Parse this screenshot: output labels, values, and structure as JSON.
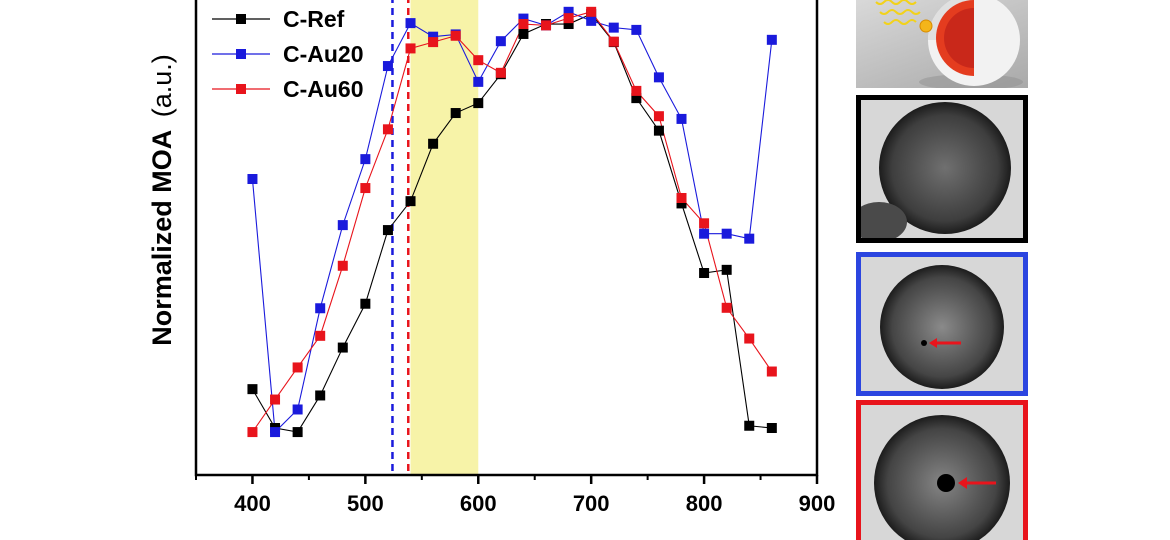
{
  "chart_data": {
    "type": "line",
    "title": "",
    "xlabel": "",
    "ylabel": "Normalized MOA",
    "ylabel_unit": "(a.u.)",
    "xlim": [
      350,
      900
    ],
    "ylim": [
      0,
      1.06
    ],
    "xticks": [
      400,
      500,
      600,
      700,
      800,
      900
    ],
    "grid": false,
    "legend_position": "top-left",
    "highlight_band": {
      "x_start": 540,
      "x_end": 600,
      "color": "#f7f3a8"
    },
    "vlines": [
      {
        "x": 524,
        "color": "#1a1adc",
        "style": "dashed"
      },
      {
        "x": 538,
        "color": "#e8141c",
        "style": "dashed"
      }
    ],
    "series": [
      {
        "name": "C-Ref",
        "color": "#000000",
        "x": [
          400,
          420,
          440,
          460,
          480,
          500,
          520,
          540,
          560,
          580,
          600,
          620,
          640,
          660,
          680,
          700,
          720,
          740,
          760,
          780,
          800,
          820,
          840,
          860
        ],
        "y": [
          0.19,
          0.104,
          0.095,
          0.176,
          0.282,
          0.379,
          0.542,
          0.606,
          0.733,
          0.801,
          0.823,
          0.887,
          0.976,
          0.998,
          0.998,
          1.02,
          0.958,
          0.834,
          0.762,
          0.601,
          0.447,
          0.454,
          0.109,
          0.104
        ]
      },
      {
        "name": "C-Au20",
        "color": "#1a1adc",
        "x": [
          400,
          420,
          440,
          460,
          480,
          500,
          520,
          540,
          560,
          580,
          600,
          620,
          640,
          660,
          680,
          700,
          720,
          740,
          760,
          780,
          800,
          820,
          840,
          860
        ],
        "y": [
          0.655,
          0.095,
          0.145,
          0.369,
          0.553,
          0.699,
          0.905,
          1.0,
          0.97,
          0.975,
          0.87,
          0.96,
          1.01,
          0.995,
          1.025,
          1.005,
          0.99,
          0.985,
          0.88,
          0.788,
          0.534,
          0.534,
          0.523,
          0.963
        ]
      },
      {
        "name": "C-Au60",
        "color": "#e8141c",
        "x": [
          400,
          420,
          440,
          460,
          480,
          500,
          520,
          540,
          560,
          580,
          600,
          620,
          640,
          660,
          680,
          700,
          720,
          740,
          760,
          780,
          800,
          820,
          840,
          860
        ],
        "y": [
          0.095,
          0.167,
          0.238,
          0.308,
          0.463,
          0.635,
          0.765,
          0.944,
          0.958,
          0.972,
          0.918,
          0.89,
          0.998,
          0.995,
          1.011,
          1.025,
          0.959,
          0.85,
          0.794,
          0.613,
          0.557,
          0.37,
          0.302,
          0.229
        ]
      }
    ]
  },
  "panels": [
    {
      "name": "sphere-schematic",
      "border_color": "none"
    },
    {
      "name": "c-ref-tem",
      "border_color": "#000000"
    },
    {
      "name": "c-au20-tem",
      "border_color": "#2b45e0"
    },
    {
      "name": "c-au60-tem",
      "border_color": "#e8141c"
    }
  ]
}
